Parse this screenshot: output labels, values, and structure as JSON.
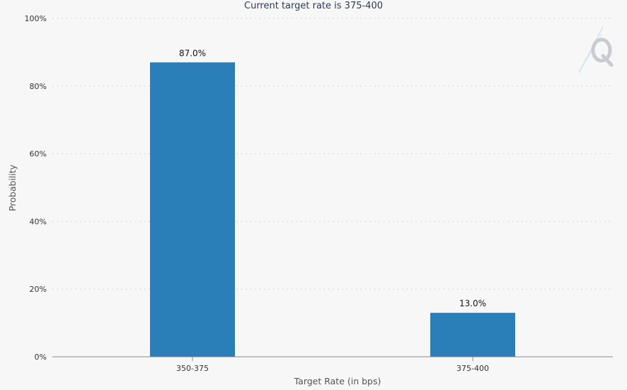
{
  "chart_data": {
    "type": "bar",
    "title": "Current target rate is 375-400",
    "xlabel": "Target Rate (in bps)",
    "ylabel": "Probability",
    "categories": [
      "350-375",
      "375-400"
    ],
    "values": [
      87.0,
      13.0
    ],
    "data_labels": [
      "87.0%",
      "13.0%"
    ],
    "ylim": [
      0,
      100
    ],
    "yticks": [
      "0%",
      "20%",
      "40%",
      "60%",
      "80%",
      "100%"
    ],
    "grid": true,
    "legend": "none",
    "bar_color": "#2a7fb8"
  },
  "icons": {
    "watermark": "q-logo-icon"
  }
}
